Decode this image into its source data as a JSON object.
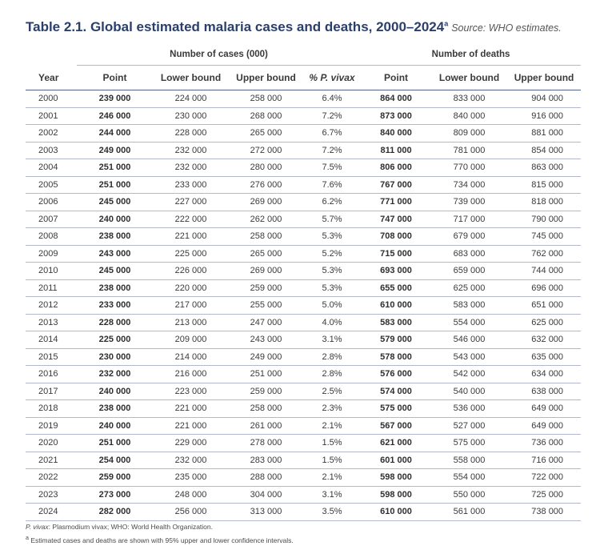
{
  "title": {
    "main": "Table 2.1. Global estimated malaria cases and deaths, 2000–2024",
    "sup": "a",
    "source": "Source: WHO estimates."
  },
  "groups": {
    "cases": "Number of cases (000)",
    "deaths": "Number of deaths"
  },
  "columns": {
    "year": "Year",
    "cases_point": "Point",
    "cases_lower": "Lower bound",
    "cases_upper": "Upper  bound",
    "pct_vivax": "% P. vivax",
    "deaths_point": "Point",
    "deaths_lower": "Lower bound",
    "deaths_upper": "Upper bound"
  },
  "rows": [
    [
      "2000",
      "239 000",
      "224 000",
      "258 000",
      "6.4%",
      "864 000",
      "833 000",
      "904 000"
    ],
    [
      "2001",
      "246 000",
      "230 000",
      "268 000",
      "7.2%",
      "873 000",
      "840 000",
      "916 000"
    ],
    [
      "2002",
      "244 000",
      "228 000",
      "265 000",
      "6.7%",
      "840 000",
      "809 000",
      "881 000"
    ],
    [
      "2003",
      "249 000",
      "232 000",
      "272 000",
      "7.2%",
      "811 000",
      "781 000",
      "854 000"
    ],
    [
      "2004",
      "251 000",
      "232 000",
      "280 000",
      "7.5%",
      "806 000",
      "770 000",
      "863 000"
    ],
    [
      "2005",
      "251 000",
      "233 000",
      "276 000",
      "7.6%",
      "767 000",
      "734 000",
      "815 000"
    ],
    [
      "2006",
      "245 000",
      "227 000",
      "269 000",
      "6.2%",
      "771 000",
      "739 000",
      "818 000"
    ],
    [
      "2007",
      "240 000",
      "222 000",
      "262 000",
      "5.7%",
      "747 000",
      "717 000",
      "790 000"
    ],
    [
      "2008",
      "238 000",
      "221 000",
      "258 000",
      "5.3%",
      "708 000",
      "679 000",
      "745 000"
    ],
    [
      "2009",
      "243 000",
      "225 000",
      "265 000",
      "5.2%",
      "715 000",
      "683 000",
      "762 000"
    ],
    [
      "2010",
      "245 000",
      "226 000",
      "269 000",
      "5.3%",
      "693 000",
      "659 000",
      "744 000"
    ],
    [
      "2011",
      "238 000",
      "220 000",
      "259 000",
      "5.3%",
      "655 000",
      "625 000",
      "696 000"
    ],
    [
      "2012",
      "233 000",
      "217 000",
      "255 000",
      "5.0%",
      "610 000",
      "583 000",
      "651 000"
    ],
    [
      "2013",
      "228 000",
      "213 000",
      "247 000",
      "4.0%",
      "583 000",
      "554 000",
      "625 000"
    ],
    [
      "2014",
      "225 000",
      "209 000",
      "243 000",
      "3.1%",
      "579 000",
      "546 000",
      "632 000"
    ],
    [
      "2015",
      "230 000",
      "214 000",
      "249 000",
      "2.8%",
      "578 000",
      "543 000",
      "635 000"
    ],
    [
      "2016",
      "232 000",
      "216 000",
      "251 000",
      "2.8%",
      "576 000",
      "542 000",
      "634 000"
    ],
    [
      "2017",
      "240 000",
      "223 000",
      "259 000",
      "2.5%",
      "574 000",
      "540 000",
      "638 000"
    ],
    [
      "2018",
      "238 000",
      "221 000",
      "258 000",
      "2.3%",
      "575 000",
      "536 000",
      "649 000"
    ],
    [
      "2019",
      "240 000",
      "221 000",
      "261 000",
      "2.1%",
      "567 000",
      "527 000",
      "649 000"
    ],
    [
      "2020",
      "251 000",
      "229 000",
      "278 000",
      "1.5%",
      "621 000",
      "575 000",
      "736 000"
    ],
    [
      "2021",
      "254 000",
      "232 000",
      "283 000",
      "1.5%",
      "601 000",
      "558 000",
      "716 000"
    ],
    [
      "2022",
      "259 000",
      "235 000",
      "288 000",
      "2.1%",
      "598 000",
      "554 000",
      "722 000"
    ],
    [
      "2023",
      "273 000",
      "248 000",
      "304 000",
      "3.1%",
      "598 000",
      "550 000",
      "725 000"
    ],
    [
      "2024",
      "282 000",
      "256 000",
      "313 000",
      "3.5%",
      "610 000",
      "561 000",
      "738 000"
    ]
  ],
  "footnotes": {
    "abbr_term": "P. vivax",
    "abbr_rest": ": Plasmodium vivax; WHO: World Health Organization.",
    "note_marker": "a",
    "note_text": "Estimated cases and deaths are shown with 95% upper and lower confidence intervals."
  },
  "colors": {
    "title": "#2b3f6b",
    "rule_strong": "#55628a",
    "rule_light": "#b3b9cc"
  }
}
